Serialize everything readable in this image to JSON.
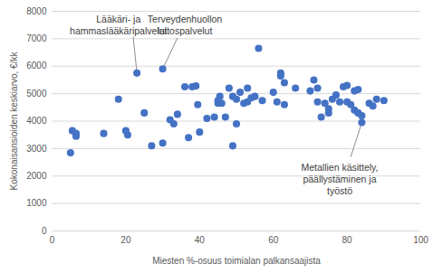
{
  "chart_data": {
    "type": "scatter",
    "x_label": "Miesten %-osuus toimialan palkansaajista",
    "y_label": "Kokonaisansioiden keskiarvo, €/kk",
    "color": "#4472c4",
    "marker": "circle",
    "grid": "y",
    "xlim": [
      0,
      100
    ],
    "xticks": [
      0,
      20,
      40,
      60,
      80,
      100
    ],
    "ylim": [
      0,
      8000
    ],
    "yticks": [
      0,
      1000,
      2000,
      3000,
      4000,
      5000,
      6000,
      7000,
      8000
    ],
    "x": [
      5,
      5.5,
      6.5,
      6.5,
      14,
      18,
      20,
      20.5,
      23,
      25,
      27,
      30,
      30,
      32,
      33,
      34,
      36,
      37,
      38,
      39,
      39.5,
      40,
      42,
      44,
      45,
      45,
      45.5,
      46,
      47,
      48,
      49,
      49,
      50,
      50,
      51,
      52,
      53,
      53,
      54,
      55,
      56,
      57,
      60,
      61,
      62,
      62,
      63,
      63,
      66,
      70,
      71,
      72,
      72,
      73,
      74,
      75,
      75,
      76,
      77,
      78,
      79,
      80,
      80,
      81,
      82,
      82,
      83,
      83,
      84,
      84,
      86,
      87,
      88,
      90
    ],
    "values": [
      2850,
      3650,
      3450,
      3550,
      3550,
      4800,
      3650,
      3500,
      5750,
      4300,
      3100,
      5900,
      3200,
      4050,
      3900,
      4250,
      5250,
      3400,
      5250,
      5280,
      4600,
      3600,
      4100,
      4150,
      4750,
      4650,
      4900,
      4650,
      4150,
      5200,
      4900,
      3100,
      3900,
      4800,
      5050,
      4650,
      4700,
      5200,
      4850,
      4900,
      6650,
      4750,
      5050,
      4700,
      5650,
      5750,
      5400,
      4600,
      5200,
      5100,
      5500,
      5200,
      4700,
      4150,
      4650,
      4450,
      4300,
      4800,
      4950,
      4700,
      5250,
      5300,
      4700,
      4600,
      5100,
      4400,
      5150,
      4300,
      3950,
      4200,
      4650,
      4550,
      4800,
      4750
    ],
    "annotations": [
      {
        "text": "Lääkäri- ja\nhammaslääkäripalvelut",
        "x": 23,
        "y": 5750
      },
      {
        "text": "Terveydenhuollon\nlaitospalvelut",
        "x": 30,
        "y": 5900
      },
      {
        "text": "Metallien käsittely,\npäällystäminen ja\ntyöstö",
        "x": 84,
        "y": 3950
      }
    ]
  }
}
